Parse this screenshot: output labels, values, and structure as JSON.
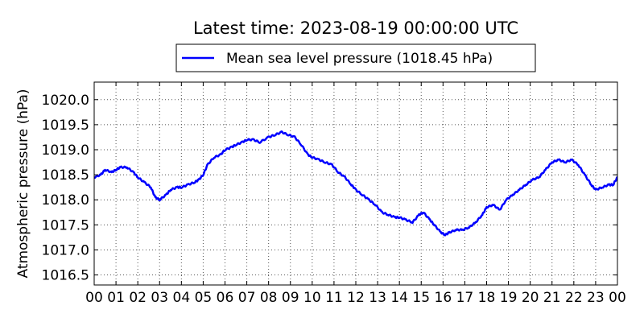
{
  "chart_data": {
    "type": "line",
    "title": "Latest time: 2023-08-19 00:00:00 UTC",
    "ylabel": "Atmospheric pressure (hPa)",
    "xlabel": "",
    "legend": {
      "placement": "top-center"
    },
    "grid": true,
    "xlim": [
      0,
      24
    ],
    "ylim": [
      1016.3,
      1020.35
    ],
    "x_tick_labels": [
      "00",
      "01",
      "02",
      "03",
      "04",
      "05",
      "06",
      "07",
      "08",
      "09",
      "10",
      "11",
      "12",
      "13",
      "14",
      "15",
      "16",
      "17",
      "18",
      "19",
      "20",
      "21",
      "22",
      "23",
      "00"
    ],
    "y_ticks": [
      1016.5,
      1017.0,
      1017.5,
      1018.0,
      1018.5,
      1019.0,
      1019.5,
      1020.0
    ],
    "y_tick_labels": [
      "1016.5",
      "1017.0",
      "1017.5",
      "1018.0",
      "1018.5",
      "1019.0",
      "1019.5",
      "1020.0"
    ],
    "series": [
      {
        "name": "Mean sea level pressure (1018.45 hPa)",
        "color": "#0000ff",
        "x": [
          0,
          0.3,
          0.5,
          0.8,
          1.0,
          1.2,
          1.5,
          1.8,
          2.0,
          2.3,
          2.6,
          2.8,
          3.0,
          3.3,
          3.5,
          3.8,
          4.0,
          4.3,
          4.6,
          4.8,
          5.0,
          5.2,
          5.5,
          5.8,
          6.0,
          6.3,
          6.5,
          6.8,
          7.0,
          7.3,
          7.6,
          8.0,
          8.3,
          8.6,
          8.9,
          9.2,
          9.5,
          9.8,
          10.0,
          10.3,
          10.6,
          10.9,
          11.2,
          11.5,
          11.8,
          12.0,
          12.3,
          12.6,
          12.9,
          13.2,
          13.5,
          13.8,
          14.0,
          14.3,
          14.6,
          14.9,
          15.1,
          15.4,
          15.6,
          15.9,
          16.1,
          16.3,
          16.6,
          16.9,
          17.2,
          17.5,
          17.8,
          18.0,
          18.3,
          18.6,
          18.9,
          19.2,
          19.5,
          19.8,
          20.1,
          20.4,
          20.7,
          21.0,
          21.3,
          21.6,
          21.9,
          22.2,
          22.5,
          22.8,
          23.0,
          23.3,
          23.6,
          23.8,
          24.0
        ],
        "y": [
          1018.45,
          1018.5,
          1018.6,
          1018.55,
          1018.6,
          1018.65,
          1018.65,
          1018.55,
          1018.45,
          1018.35,
          1018.25,
          1018.05,
          1018.0,
          1018.1,
          1018.2,
          1018.25,
          1018.25,
          1018.3,
          1018.35,
          1018.4,
          1018.5,
          1018.7,
          1018.85,
          1018.9,
          1019.0,
          1019.05,
          1019.1,
          1019.15,
          1019.2,
          1019.2,
          1019.15,
          1019.25,
          1019.3,
          1019.35,
          1019.3,
          1019.25,
          1019.1,
          1018.9,
          1018.85,
          1018.8,
          1018.75,
          1018.7,
          1018.55,
          1018.45,
          1018.3,
          1018.2,
          1018.1,
          1018.0,
          1017.9,
          1017.75,
          1017.7,
          1017.65,
          1017.65,
          1017.6,
          1017.55,
          1017.7,
          1017.75,
          1017.6,
          1017.5,
          1017.35,
          1017.3,
          1017.35,
          1017.4,
          1017.4,
          1017.45,
          1017.55,
          1017.7,
          1017.85,
          1017.9,
          1017.8,
          1018.0,
          1018.1,
          1018.2,
          1018.3,
          1018.4,
          1018.45,
          1018.6,
          1018.75,
          1018.8,
          1018.75,
          1018.8,
          1018.7,
          1018.5,
          1018.3,
          1018.2,
          1018.25,
          1018.3,
          1018.3,
          1018.45
        ]
      }
    ]
  }
}
